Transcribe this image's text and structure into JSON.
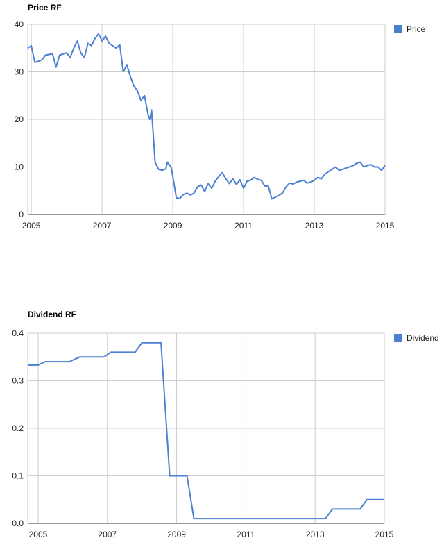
{
  "chart_data": [
    {
      "type": "line",
      "title": "Price RF",
      "xlabel": "",
      "ylabel": "",
      "xlim": [
        2004.9,
        2015.0
      ],
      "ylim": [
        0,
        40
      ],
      "x_ticks": [
        "2005",
        "2007",
        "2009",
        "2011",
        "2013",
        "2015"
      ],
      "y_ticks": [
        "0",
        "10",
        "20",
        "30",
        "40"
      ],
      "grid": true,
      "legend": "right",
      "series": [
        {
          "name": "Price",
          "color": "#4a7fd1",
          "x": [
            2004.9,
            2005.0,
            2005.1,
            2005.3,
            2005.4,
            2005.6,
            2005.7,
            2005.8,
            2006.0,
            2006.1,
            2006.2,
            2006.3,
            2006.4,
            2006.5,
            2006.6,
            2006.7,
            2006.8,
            2006.9,
            2007.0,
            2007.1,
            2007.2,
            2007.3,
            2007.4,
            2007.5,
            2007.6,
            2007.7,
            2007.8,
            2007.9,
            2008.0,
            2008.1,
            2008.2,
            2008.3,
            2008.35,
            2008.4,
            2008.5,
            2008.6,
            2008.7,
            2008.8,
            2008.85,
            2008.95,
            2009.0,
            2009.1,
            2009.2,
            2009.3,
            2009.4,
            2009.5,
            2009.6,
            2009.7,
            2009.8,
            2009.9,
            2010.0,
            2010.1,
            2010.2,
            2010.3,
            2010.4,
            2010.5,
            2010.6,
            2010.7,
            2010.8,
            2010.9,
            2011.0,
            2011.1,
            2011.2,
            2011.3,
            2011.4,
            2011.5,
            2011.6,
            2011.7,
            2011.8,
            2012.0,
            2012.1,
            2012.2,
            2012.3,
            2012.4,
            2012.5,
            2012.6,
            2012.7,
            2012.8,
            2012.9,
            2013.0,
            2013.1,
            2013.2,
            2013.3,
            2013.4,
            2013.5,
            2013.6,
            2013.7,
            2013.8,
            2013.9,
            2014.0,
            2014.1,
            2014.2,
            2014.3,
            2014.4,
            2014.5,
            2014.6,
            2014.7,
            2014.8,
            2014.9,
            2015.0
          ],
          "values": [
            35,
            35.5,
            32,
            32.5,
            33.5,
            33.8,
            31,
            33.5,
            34,
            33,
            35,
            36.5,
            34,
            33,
            36,
            35.5,
            37,
            38,
            36.5,
            37.5,
            36,
            35.5,
            35,
            35.7,
            30,
            31.5,
            29,
            27,
            26,
            24,
            25,
            21,
            20,
            22,
            11,
            9.5,
            9.3,
            9.6,
            11,
            10,
            8,
            3.5,
            3.4,
            4.2,
            4.5,
            4.1,
            4.5,
            5.8,
            6.2,
            4.8,
            6.5,
            5.5,
            7,
            8,
            8.8,
            7.5,
            6.5,
            7.5,
            6.3,
            7.3,
            5.5,
            7,
            7.2,
            7.8,
            7.4,
            7.2,
            6,
            6,
            3.3,
            4,
            4.5,
            5.8,
            6.6,
            6.4,
            6.8,
            7,
            7.2,
            6.6,
            6.8,
            7.2,
            7.8,
            7.5,
            8.5,
            9,
            9.5,
            10,
            9.3,
            9.5,
            9.8,
            10,
            10.3,
            10.8,
            11,
            10,
            10.3,
            10.5,
            10,
            10,
            9.3,
            10.3
          ]
        }
      ]
    },
    {
      "type": "line",
      "title": "Dividend RF",
      "xlabel": "",
      "ylabel": "",
      "xlim": [
        2004.7,
        2015.0
      ],
      "ylim": [
        0,
        0.4
      ],
      "x_ticks": [
        "2005",
        "2007",
        "2009",
        "2011",
        "2013",
        "2015"
      ],
      "y_ticks": [
        "0.0",
        "0.1",
        "0.2",
        "0.3",
        "0.4"
      ],
      "grid": true,
      "legend": "right",
      "series": [
        {
          "name": "Dividend",
          "color": "#4a7fd1",
          "x": [
            2004.7,
            2005.0,
            2005.2,
            2005.5,
            2005.9,
            2006.2,
            2006.5,
            2006.9,
            2007.1,
            2007.5,
            2007.8,
            2008.0,
            2008.3,
            2008.55,
            2008.8,
            2009.0,
            2009.3,
            2009.5,
            2009.7,
            2010.0,
            2010.5,
            2011.0,
            2011.5,
            2012.0,
            2012.5,
            2013.0,
            2013.3,
            2013.5,
            2013.8,
            2014.0,
            2014.3,
            2014.5,
            2014.8,
            2015.0
          ],
          "values": [
            0.333,
            0.333,
            0.34,
            0.34,
            0.34,
            0.35,
            0.35,
            0.35,
            0.36,
            0.36,
            0.36,
            0.38,
            0.38,
            0.38,
            0.1,
            0.1,
            0.1,
            0.01,
            0.01,
            0.01,
            0.01,
            0.01,
            0.01,
            0.01,
            0.01,
            0.01,
            0.01,
            0.03,
            0.03,
            0.03,
            0.03,
            0.05,
            0.05,
            0.05
          ]
        }
      ]
    }
  ]
}
